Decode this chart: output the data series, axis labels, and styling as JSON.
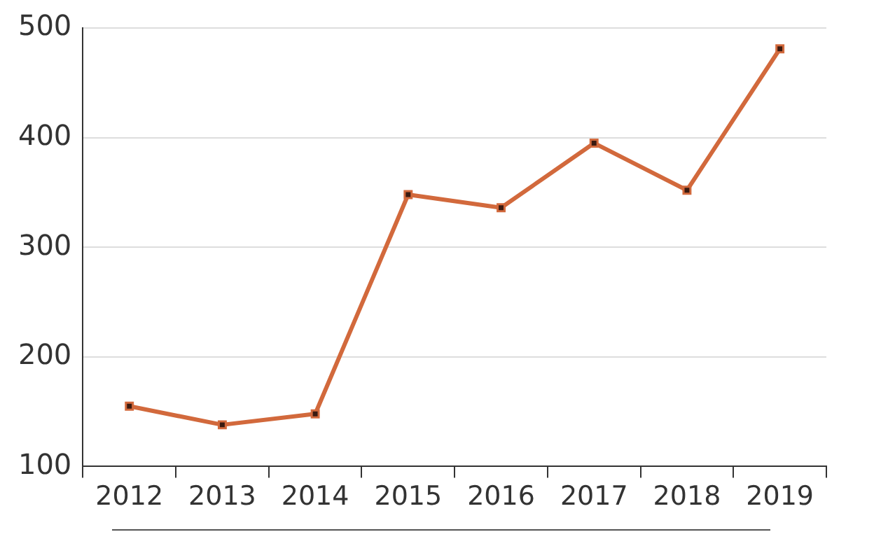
{
  "chart_data": {
    "type": "line",
    "categories": [
      "2012",
      "2013",
      "2014",
      "2015",
      "2016",
      "2017",
      "2018",
      "2019"
    ],
    "series": [
      {
        "color": "#d2693c",
        "values": [
          155,
          138,
          148,
          348,
          336,
          395,
          352,
          481
        ]
      }
    ],
    "ylim": [
      100,
      500
    ],
    "yticks": [
      100,
      200,
      300,
      400,
      500
    ],
    "grid": "y",
    "legend": false,
    "marker": "square",
    "line_style": "solid"
  }
}
